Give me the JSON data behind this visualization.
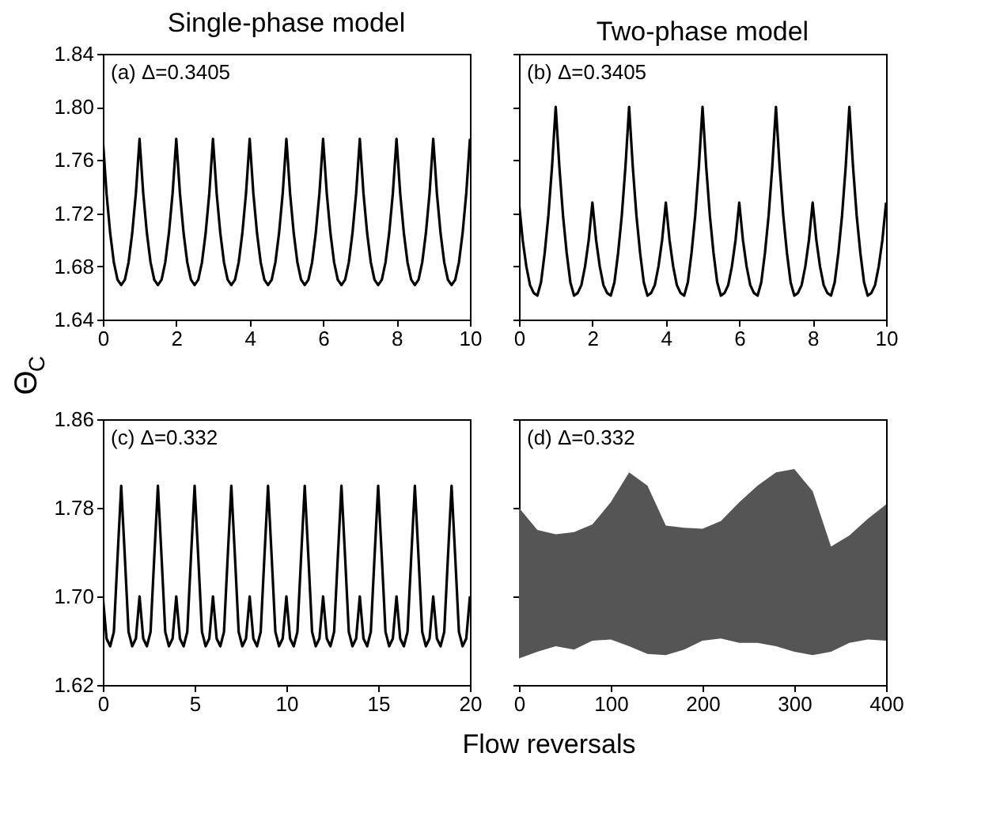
{
  "chart_data": [
    {
      "type": "line",
      "title": "Single-phase model",
      "ylabel": "Θ$_{C}$",
      "annotations": [
        "(a) Δ=0.3405"
      ],
      "xlim": [
        0,
        10
      ],
      "xticks": [
        0,
        2,
        4,
        6,
        8,
        10
      ],
      "ylim": [
        1.64,
        1.84
      ],
      "yticks": [
        1.64,
        1.68,
        1.72,
        1.76,
        {
          "value": 1.8,
          "label": "1.80"
        },
        1.84
      ],
      "grid": false,
      "series": [
        {
          "color": "#000000",
          "x": [
            0,
            0.1,
            0.2,
            0.3,
            0.4,
            0.5,
            0.6,
            0.7,
            0.8,
            0.9,
            1,
            1.1,
            1.2,
            1.3,
            1.4,
            1.5,
            1.6,
            1.7,
            1.8,
            1.9,
            2,
            2.1,
            2.2,
            2.3,
            2.4,
            2.5,
            2.6,
            2.7,
            2.8,
            2.9,
            3,
            3.1,
            3.2,
            3.3,
            3.4,
            3.5,
            3.6,
            3.7,
            3.8,
            3.9,
            4,
            4.1,
            4.2,
            4.3,
            4.4,
            4.5,
            4.6,
            4.7,
            4.8,
            4.9,
            5,
            5.1,
            5.2,
            5.3,
            5.4,
            5.5,
            5.6,
            5.7,
            5.8,
            5.9,
            6,
            6.1,
            6.2,
            6.3,
            6.4,
            6.5,
            6.6,
            6.7,
            6.8,
            6.9,
            7,
            7.1,
            7.2,
            7.3,
            7.4,
            7.5,
            7.6,
            7.7,
            7.8,
            7.9,
            8,
            8.1,
            8.2,
            8.3,
            8.4,
            8.5,
            8.6,
            8.7,
            8.8,
            8.9,
            9,
            9.1,
            9.2,
            9.3,
            9.4,
            9.5,
            9.6,
            9.7,
            9.8,
            9.9,
            10
          ],
          "values": [
            1.776,
            1.735,
            1.705,
            1.683,
            1.67,
            1.666,
            1.67,
            1.683,
            1.705,
            1.735,
            1.776,
            1.735,
            1.705,
            1.683,
            1.67,
            1.666,
            1.67,
            1.683,
            1.705,
            1.735,
            1.776,
            1.735,
            1.705,
            1.683,
            1.67,
            1.666,
            1.67,
            1.683,
            1.705,
            1.735,
            1.776,
            1.735,
            1.705,
            1.683,
            1.67,
            1.666,
            1.67,
            1.683,
            1.705,
            1.735,
            1.776,
            1.735,
            1.705,
            1.683,
            1.67,
            1.666,
            1.67,
            1.683,
            1.705,
            1.735,
            1.776,
            1.735,
            1.705,
            1.683,
            1.67,
            1.666,
            1.67,
            1.683,
            1.705,
            1.735,
            1.776,
            1.735,
            1.705,
            1.683,
            1.67,
            1.666,
            1.67,
            1.683,
            1.705,
            1.735,
            1.776,
            1.735,
            1.705,
            1.683,
            1.67,
            1.666,
            1.67,
            1.683,
            1.705,
            1.735,
            1.776,
            1.735,
            1.705,
            1.683,
            1.67,
            1.666,
            1.67,
            1.683,
            1.705,
            1.735,
            1.776,
            1.735,
            1.705,
            1.683,
            1.67,
            1.666,
            1.67,
            1.683,
            1.705,
            1.735,
            1.776
          ]
        }
      ]
    },
    {
      "type": "line",
      "title": "Two-phase model",
      "annotations": [
        "(b) Δ=0.3405"
      ],
      "xlim": [
        0,
        10
      ],
      "xticks": [
        0,
        2,
        4,
        6,
        8,
        10
      ],
      "ylim": [
        1.64,
        1.84
      ],
      "yticks": [
        {
          "value": 1.64,
          "label": null
        },
        {
          "value": 1.68,
          "label": null
        },
        {
          "value": 1.72,
          "label": null
        },
        {
          "value": 1.76,
          "label": null
        },
        {
          "value": 1.8,
          "label": null
        },
        {
          "value": 1.84,
          "label": null
        }
      ],
      "tick_labels": "x",
      "grid": false,
      "series": [
        {
          "color": "#000000",
          "x": [
            0,
            0.1,
            0.2,
            0.3,
            0.4,
            0.5,
            0.6,
            0.7,
            0.8,
            0.9,
            1,
            1.1,
            1.2,
            1.3,
            1.4,
            1.5,
            1.6,
            1.7,
            1.8,
            1.9,
            2,
            2.1,
            2.2,
            2.3,
            2.4,
            2.5,
            2.6,
            2.7,
            2.8,
            2.9,
            3,
            3.1,
            3.2,
            3.3,
            3.4,
            3.5,
            3.6,
            3.7,
            3.8,
            3.9,
            4,
            4.1,
            4.2,
            4.3,
            4.4,
            4.5,
            4.6,
            4.7,
            4.8,
            4.9,
            5,
            5.1,
            5.2,
            5.3,
            5.4,
            5.5,
            5.6,
            5.7,
            5.8,
            5.9,
            6,
            6.1,
            6.2,
            6.3,
            6.4,
            6.5,
            6.6,
            6.7,
            6.8,
            6.9,
            7,
            7.1,
            7.2,
            7.3,
            7.4,
            7.5,
            7.6,
            7.7,
            7.8,
            7.9,
            8,
            8.1,
            8.2,
            8.3,
            8.4,
            8.5,
            8.6,
            8.7,
            8.8,
            8.9,
            9,
            9.1,
            9.2,
            9.3,
            9.4,
            9.5,
            9.6,
            9.7,
            9.8,
            9.9,
            10
          ],
          "values": [
            1.728,
            1.7,
            1.68,
            1.666,
            1.66,
            1.658,
            1.668,
            1.69,
            1.718,
            1.755,
            1.8,
            1.755,
            1.718,
            1.69,
            1.668,
            1.658,
            1.66,
            1.666,
            1.68,
            1.7,
            1.728,
            1.7,
            1.68,
            1.666,
            1.66,
            1.658,
            1.668,
            1.69,
            1.718,
            1.755,
            1.8,
            1.755,
            1.718,
            1.69,
            1.668,
            1.658,
            1.66,
            1.666,
            1.68,
            1.7,
            1.728,
            1.7,
            1.68,
            1.666,
            1.66,
            1.658,
            1.668,
            1.69,
            1.718,
            1.755,
            1.8,
            1.755,
            1.718,
            1.69,
            1.668,
            1.658,
            1.66,
            1.666,
            1.68,
            1.7,
            1.728,
            1.7,
            1.68,
            1.666,
            1.66,
            1.658,
            1.668,
            1.69,
            1.718,
            1.755,
            1.8,
            1.755,
            1.718,
            1.69,
            1.668,
            1.658,
            1.66,
            1.666,
            1.68,
            1.7,
            1.728,
            1.7,
            1.68,
            1.666,
            1.66,
            1.658,
            1.668,
            1.69,
            1.718,
            1.755,
            1.8,
            1.755,
            1.718,
            1.69,
            1.668,
            1.658,
            1.66,
            1.666,
            1.68,
            1.7,
            1.728
          ]
        }
      ]
    },
    {
      "type": "line",
      "xlabel": "Flow reversals",
      "annotations": [
        "(c) Δ=0.332"
      ],
      "xlim": [
        0,
        20
      ],
      "xticks": [
        0,
        5,
        10,
        15,
        20
      ],
      "ylim": [
        1.62,
        1.86
      ],
      "yticks": [
        1.62,
        {
          "value": 1.7,
          "label": "1.70"
        },
        1.78,
        1.86
      ],
      "grid": false,
      "series": [
        {
          "color": "#000000",
          "x": [
            0,
            0.2,
            0.4,
            0.6,
            0.8,
            1,
            1.2,
            1.4,
            1.6,
            1.8,
            2,
            2.2,
            2.4,
            2.6,
            2.8,
            3,
            3.2,
            3.4,
            3.6,
            3.8,
            4,
            4.2,
            4.4,
            4.6,
            4.8,
            5,
            5.2,
            5.4,
            5.6,
            5.8,
            6,
            6.2,
            6.4,
            6.6,
            6.8,
            7,
            7.2,
            7.4,
            7.6,
            7.8,
            8,
            8.2,
            8.4,
            8.6,
            8.8,
            9,
            9.2,
            9.4,
            9.6,
            9.8,
            10,
            10.2,
            10.4,
            10.6,
            10.8,
            11,
            11.2,
            11.4,
            11.6,
            11.8,
            12,
            12.2,
            12.4,
            12.6,
            12.8,
            13,
            13.2,
            13.4,
            13.6,
            13.8,
            14,
            14.2,
            14.4,
            14.6,
            14.8,
            15,
            15.2,
            15.4,
            15.6,
            15.8,
            16,
            16.2,
            16.4,
            16.6,
            16.8,
            17,
            17.2,
            17.4,
            17.6,
            17.8,
            18,
            18.2,
            18.4,
            18.6,
            18.8,
            19,
            19.2,
            19.4,
            19.6,
            19.8,
            20
          ],
          "values": [
            1.7,
            1.662,
            1.655,
            1.668,
            1.735,
            1.8,
            1.735,
            1.668,
            1.655,
            1.662,
            1.7,
            1.662,
            1.655,
            1.668,
            1.735,
            1.8,
            1.735,
            1.668,
            1.655,
            1.662,
            1.7,
            1.662,
            1.655,
            1.668,
            1.735,
            1.8,
            1.735,
            1.668,
            1.655,
            1.662,
            1.7,
            1.662,
            1.655,
            1.668,
            1.735,
            1.8,
            1.735,
            1.668,
            1.655,
            1.662,
            1.7,
            1.662,
            1.655,
            1.668,
            1.735,
            1.8,
            1.735,
            1.668,
            1.655,
            1.662,
            1.7,
            1.662,
            1.655,
            1.668,
            1.735,
            1.8,
            1.735,
            1.668,
            1.655,
            1.662,
            1.7,
            1.662,
            1.655,
            1.668,
            1.735,
            1.8,
            1.735,
            1.668,
            1.655,
            1.662,
            1.7,
            1.662,
            1.655,
            1.668,
            1.735,
            1.8,
            1.735,
            1.668,
            1.655,
            1.662,
            1.7,
            1.662,
            1.655,
            1.668,
            1.735,
            1.8,
            1.735,
            1.668,
            1.655,
            1.662,
            1.7,
            1.662,
            1.655,
            1.668,
            1.735,
            1.8,
            1.735,
            1.668,
            1.655,
            1.662,
            1.7
          ]
        }
      ]
    },
    {
      "type": "area",
      "annotations": [
        "(d) Δ=0.332"
      ],
      "xlim": [
        0,
        400
      ],
      "xticks": [
        0,
        100,
        200,
        300,
        400
      ],
      "ylim": [
        1.62,
        1.86
      ],
      "yticks": [
        {
          "value": 1.62,
          "label": null
        },
        {
          "value": 1.7,
          "label": null
        },
        {
          "value": 1.78,
          "label": null
        },
        {
          "value": 1.86,
          "label": null
        }
      ],
      "tick_labels": "x",
      "grid": false,
      "series": [
        {
          "type": "area",
          "color": "#555555",
          "x": [
            0,
            20,
            40,
            60,
            80,
            100,
            120,
            140,
            160,
            180,
            200,
            220,
            240,
            260,
            280,
            300,
            320,
            340,
            360,
            380,
            400
          ],
          "values": [
            1.78,
            1.76,
            1.756,
            1.758,
            1.765,
            1.785,
            1.812,
            1.8,
            1.764,
            1.762,
            1.761,
            1.768,
            1.785,
            1.8,
            1.812,
            1.815,
            1.795,
            1.745,
            1.755,
            1.77,
            1.783
          ]
        },
        {
          "type": "area",
          "color": "#ffffff",
          "x": [
            0,
            20,
            40,
            60,
            80,
            100,
            120,
            140,
            160,
            180,
            200,
            220,
            240,
            260,
            280,
            300,
            320,
            340,
            360,
            380,
            400
          ],
          "values": [
            1.644,
            1.65,
            1.655,
            1.652,
            1.66,
            1.661,
            1.655,
            1.648,
            1.647,
            1.652,
            1.66,
            1.662,
            1.658,
            1.658,
            1.655,
            1.65,
            1.647,
            1.65,
            1.658,
            1.661,
            1.66
          ]
        }
      ]
    }
  ]
}
